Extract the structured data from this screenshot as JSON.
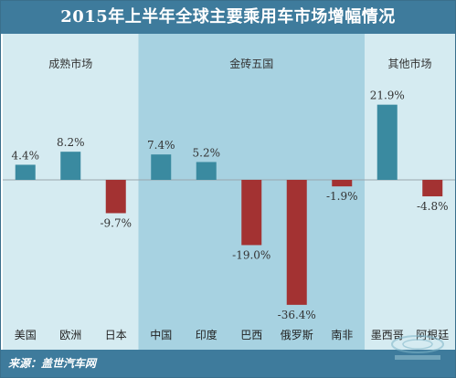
{
  "title": "2015年上半年全球主要乘用车市场增幅情况",
  "source": "来源：盖世汽车网",
  "colors": {
    "positive": "#3a8aa0",
    "negative": "#a33232",
    "band_light": "#d5ebf1",
    "band_dark": "#a7d2e1",
    "header": "#3e7b9c"
  },
  "chart_data": {
    "type": "bar",
    "title": "2015年上半年全球主要乘用车市场增幅情况",
    "xlabel": "",
    "ylabel": "",
    "unit": "%",
    "grid": false,
    "legend": "none",
    "categories": [
      "美国",
      "欧洲",
      "日本",
      "中国",
      "印度",
      "巴西",
      "俄罗斯",
      "南非",
      "墨西哥",
      "阿根廷"
    ],
    "values": [
      4.4,
      8.2,
      -9.7,
      7.4,
      5.2,
      -19.0,
      -36.4,
      -1.9,
      21.9,
      -4.8
    ],
    "value_labels": [
      "4.4%",
      "8.2%",
      "-9.7%",
      "7.4%",
      "5.2%",
      "-19.0%",
      "-36.4%",
      "-1.9%",
      "21.9%",
      "-4.8%"
    ],
    "groups": [
      {
        "label": "成熟市场",
        "start": 0,
        "end": 2
      },
      {
        "label": "金砖五国",
        "start": 3,
        "end": 7
      },
      {
        "label": "其他市场",
        "start": 8,
        "end": 9
      }
    ],
    "ylim": [
      -40,
      25
    ]
  }
}
